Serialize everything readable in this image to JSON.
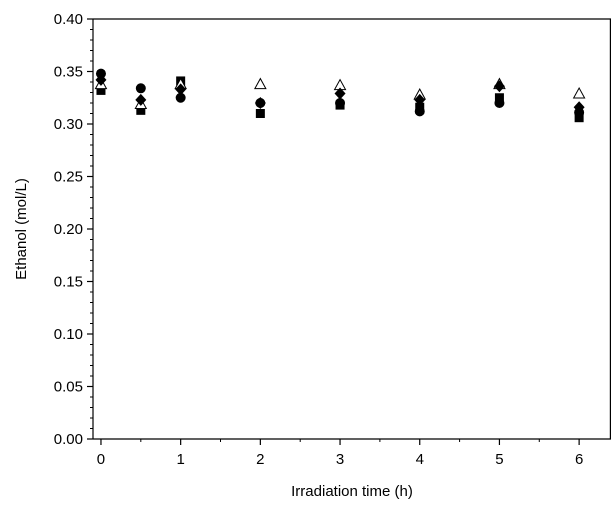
{
  "chart_data": {
    "type": "scatter",
    "title": "",
    "xlabel": "Irradiation time (h)",
    "ylabel": "Ethanol (mol/L)",
    "xlim": [
      -0.1,
      6.4
    ],
    "ylim": [
      0.0,
      0.4
    ],
    "x_ticks": [
      0,
      1,
      2,
      3,
      4,
      5,
      6
    ],
    "x_tick_labels": [
      "0",
      "1",
      "2",
      "3",
      "4",
      "5",
      "6"
    ],
    "y_ticks": [
      0.0,
      0.05,
      0.1,
      0.15,
      0.2,
      0.25,
      0.3,
      0.35,
      0.4
    ],
    "y_tick_labels": [
      "0.00",
      "0.05",
      "0.10",
      "0.15",
      "0.20",
      "0.25",
      "0.30",
      "0.35",
      "0.40"
    ],
    "grid": false,
    "legend": "none",
    "series": [
      {
        "marker": "square-filled",
        "color": "#000000",
        "x": [
          0,
          0.5,
          1,
          2,
          3,
          4,
          5,
          6
        ],
        "y": [
          0.332,
          0.313,
          0.341,
          0.31,
          0.318,
          0.316,
          0.325,
          0.306
        ]
      },
      {
        "marker": "circle-filled",
        "color": "#000000",
        "x": [
          0,
          0.5,
          1,
          2,
          3,
          4,
          5,
          6
        ],
        "y": [
          0.348,
          0.334,
          0.325,
          0.32,
          0.32,
          0.312,
          0.32,
          0.311
        ]
      },
      {
        "marker": "triangle-open",
        "color": "#000000",
        "x": [
          0,
          0.5,
          1,
          2,
          3,
          4,
          5,
          6
        ],
        "y": [
          0.338,
          0.319,
          0.338,
          0.338,
          0.337,
          0.328,
          0.338,
          0.329
        ]
      },
      {
        "marker": "diamond-filled",
        "color": "#000000",
        "x": [
          0,
          0.5,
          1,
          2,
          3,
          4,
          5,
          6
        ],
        "y": [
          0.342,
          0.323,
          0.333,
          0.32,
          0.329,
          0.323,
          0.336,
          0.316
        ]
      }
    ]
  }
}
